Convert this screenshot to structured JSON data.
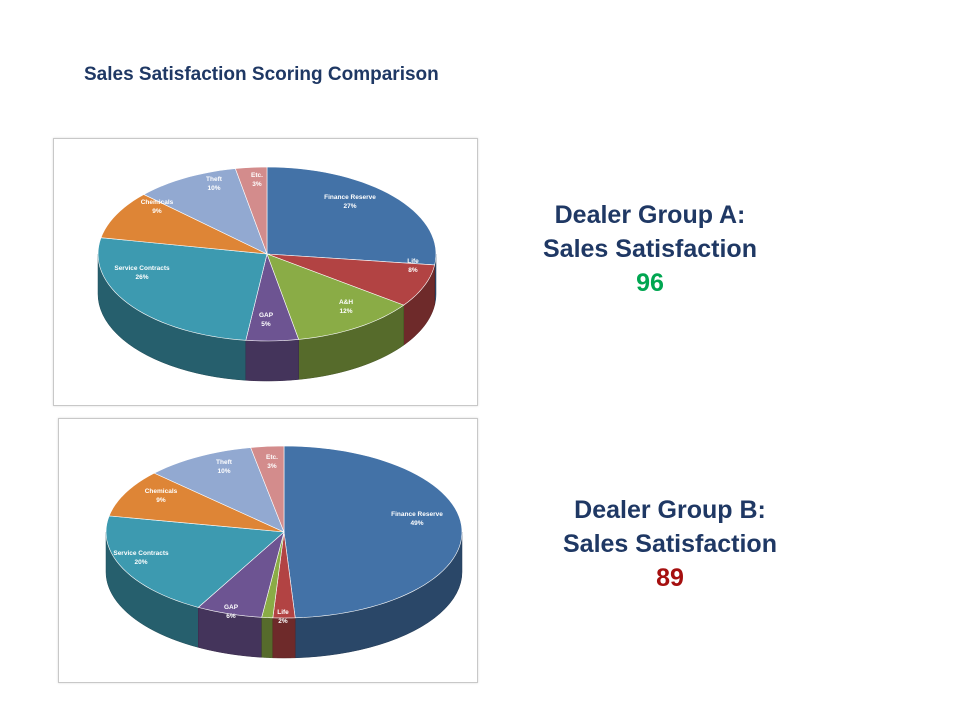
{
  "page": {
    "title": "Sales Satisfaction Scoring Comparison"
  },
  "groups": [
    {
      "name": "Dealer Group A:",
      "metric": "Sales Satisfaction",
      "score": "96",
      "score_color": "#00a651"
    },
    {
      "name": "Dealer Group B:",
      "metric": "Sales Satisfaction",
      "score": "89",
      "score_color": "#a50f0f"
    }
  ],
  "chart_data": [
    {
      "type": "pie",
      "title": "",
      "style": "3d",
      "categories": [
        "Finance Reserve",
        "Life",
        "A&H",
        "GAP",
        "Service Contracts",
        "Chemicals",
        "Theft",
        "Etc."
      ],
      "values": [
        27,
        8,
        12,
        5,
        26,
        9,
        10,
        3
      ],
      "labels": [
        "27%",
        "8%",
        "12%",
        "5%",
        "26%",
        "9%",
        "10%",
        "3%"
      ],
      "colors": [
        "#4372a7",
        "#b24343",
        "#8aac46",
        "#6d5492",
        "#3d9ab0",
        "#de8536",
        "#92a9d1",
        "#d38c8c"
      ]
    },
    {
      "type": "pie",
      "title": "",
      "style": "3d",
      "categories": [
        "Finance Reserve",
        "Life",
        "A&H",
        "GAP",
        "Service Contracts",
        "Chemicals",
        "Theft",
        "Etc."
      ],
      "values": [
        49,
        2,
        1,
        6,
        20,
        9,
        10,
        3
      ],
      "labels": [
        "49%",
        "2%",
        "",
        "6%",
        "20%",
        "9%",
        "10%",
        "3%"
      ],
      "colors": [
        "#4372a7",
        "#b24343",
        "#8aac46",
        "#6d5492",
        "#3d9ab0",
        "#de8536",
        "#92a9d1",
        "#d38c8c"
      ]
    }
  ]
}
